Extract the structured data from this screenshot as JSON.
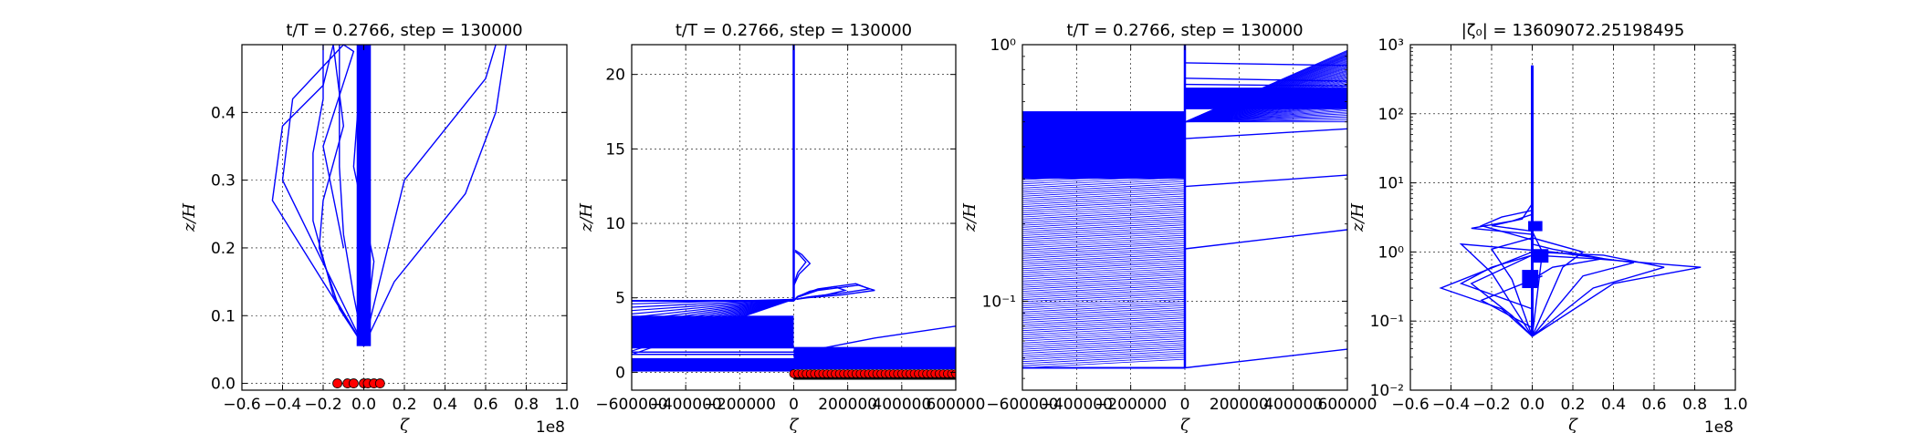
{
  "chart_data": [
    {
      "type": "line",
      "title": "t/T = 0.2766, step = 130000",
      "xlabel": "ζ",
      "ylabel": "z/H",
      "x_offset_label": "1e8",
      "xlim": [
        -0.6,
        1.0
      ],
      "ylim": [
        -0.01,
        0.5
      ],
      "xticks": [
        -0.6,
        -0.4,
        -0.2,
        0.0,
        0.2,
        0.4,
        0.6,
        0.8,
        1.0
      ],
      "xtick_labels": [
        "−0.6",
        "−0.4",
        "−0.2",
        "0.0",
        "0.2",
        "0.4",
        "0.6",
        "0.8",
        "1.0"
      ],
      "yticks": [
        0.0,
        0.1,
        0.2,
        0.3,
        0.4
      ],
      "ytick_labels": [
        "0.0",
        "0.1",
        "0.2",
        "0.3",
        "0.4"
      ],
      "grid": true,
      "series_color": "#0000ff",
      "marker_color": "#ff0000",
      "series": [
        {
          "x": [
            0.0,
            -0.4,
            -0.35,
            -0.1,
            -0.05,
            -0.2,
            -0.1
          ],
          "y": [
            0.055,
            0.3,
            0.42,
            0.5,
            0.49,
            0.35,
            0.2
          ]
        },
        {
          "x": [
            0.0,
            -0.2,
            -0.45,
            -0.4,
            -0.2,
            -0.15
          ],
          "y": [
            0.055,
            0.15,
            0.27,
            0.38,
            0.44,
            0.5
          ]
        },
        {
          "x": [
            0.0,
            -0.15,
            -0.25,
            -0.25,
            -0.2,
            -0.2
          ],
          "y": [
            0.055,
            0.13,
            0.24,
            0.34,
            0.42,
            0.5
          ]
        },
        {
          "x": [
            0.0,
            -0.05,
            -0.1,
            -0.12,
            -0.12
          ],
          "y": [
            0.055,
            0.13,
            0.22,
            0.32,
            0.5
          ]
        },
        {
          "x": [
            0.0,
            0.02,
            0.0,
            0.0,
            0.0,
            0.0
          ],
          "y": [
            0.055,
            0.3,
            0.42,
            0.45,
            0.47,
            0.5
          ]
        },
        {
          "x": [
            0.0,
            0.15,
            0.5,
            0.65,
            0.7
          ],
          "y": [
            0.055,
            0.15,
            0.28,
            0.4,
            0.5
          ]
        },
        {
          "x": [
            0.0,
            0.2,
            0.6,
            0.65
          ],
          "y": [
            0.055,
            0.3,
            0.45,
            0.5
          ]
        },
        {
          "x": [
            0.0,
            -0.12,
            -0.22,
            -0.2,
            -0.1,
            -0.15
          ],
          "y": [
            0.055,
            0.11,
            0.2,
            0.27,
            0.38,
            0.5
          ]
        },
        {
          "x": [
            0.0,
            0.05,
            -0.05,
            -0.02,
            0.03
          ],
          "y": [
            0.055,
            0.18,
            0.32,
            0.44,
            0.5
          ]
        }
      ],
      "band": {
        "x_min": -0.035,
        "x_max": 0.035,
        "y_min": 0.055,
        "y_max": 0.5
      },
      "markers_x": [
        -0.13,
        -0.08,
        -0.05,
        0.0,
        0.02,
        0.05,
        0.08
      ],
      "markers_y": 0.0
    },
    {
      "type": "line",
      "title": "t/T = 0.2766, step = 130000",
      "xlabel": "ζ",
      "ylabel": "z/H",
      "xlim": [
        -600000,
        600000
      ],
      "ylim": [
        -1.2,
        22
      ],
      "xticks": [
        -600000,
        -400000,
        -200000,
        0,
        200000,
        400000,
        600000
      ],
      "xtick_labels": [
        "−600000",
        "−400000",
        "−200000",
        "0",
        "200000",
        "400000",
        "600000"
      ],
      "yticks": [
        0,
        5,
        10,
        15,
        20
      ],
      "ytick_labels": [
        "0",
        "5",
        "10",
        "15",
        "20"
      ],
      "grid": true,
      "series_color": "#0000ff",
      "marker_color": "#ff0000",
      "curve_series": [
        {
          "x": [
            0,
            15000,
            90000,
            240000,
            300000,
            180000,
            50000,
            10000
          ],
          "y": [
            4.8,
            5.05,
            5.5,
            5.85,
            5.5,
            5.2,
            5.0,
            4.9
          ]
        },
        {
          "x": [
            0,
            15000,
            90000,
            230000,
            280000,
            170000,
            50000,
            10000
          ],
          "y": [
            4.8,
            5.1,
            5.6,
            5.95,
            5.6,
            5.3,
            5.05,
            4.9
          ]
        },
        {
          "x": [
            0,
            12000,
            60000,
            150000,
            190000,
            120000,
            40000
          ],
          "y": [
            4.8,
            5.05,
            5.45,
            5.75,
            5.5,
            5.2,
            5.0
          ]
        },
        {
          "x": [
            0,
            20000,
            60000,
            30000,
            5000
          ],
          "y": [
            5.8,
            6.6,
            7.3,
            7.9,
            8.2
          ]
        },
        {
          "x": [
            0,
            15000,
            45000,
            20000,
            5000
          ],
          "y": [
            5.9,
            6.7,
            7.4,
            7.9,
            8.1
          ]
        },
        {
          "x": [
            0,
            100000,
            300000,
            600000
          ],
          "y": [
            1.0,
            1.6,
            2.3,
            3.1
          ]
        }
      ],
      "left_fan": {
        "x_start": -600000,
        "x_end": 0,
        "y_start_min": 1.2,
        "y_start_max": 4.6,
        "y_end": 4.9,
        "count": 16
      },
      "left_fills": [
        {
          "y_min": 1.6,
          "y_max": 3.8,
          "x_min": -600000,
          "x_max": 0
        },
        {
          "y_min": 0.05,
          "y_max": 0.95,
          "x_min": -600000,
          "x_max": 0
        }
      ],
      "left_lines_y": [
        1.2,
        1.35
      ],
      "right_fill": {
        "y_min": 0.2,
        "y_max": 1.7,
        "x_min": 0,
        "x_max": 600000
      },
      "right_fill2": {
        "y_min": -0.5,
        "y_max": -0.2,
        "x_min": 0,
        "x_max": 600000
      },
      "spike": {
        "x": 0,
        "y_min": 4.8,
        "y_max": 22
      },
      "markers_y": -0.1,
      "markers_x_start": 0,
      "markers_x_end": 600000,
      "marker_count": 40
    },
    {
      "type": "line",
      "title": "t/T = 0.2766, step = 130000",
      "xlabel": "ζ",
      "ylabel": "z/H",
      "xlim": [
        -600000,
        600000
      ],
      "ylim": [
        0.045,
        1.0
      ],
      "yscale": "log",
      "xticks": [
        -600000,
        -400000,
        -200000,
        0,
        200000,
        400000,
        600000
      ],
      "xtick_labels": [
        "−600000",
        "−400000",
        "−200000",
        "0",
        "200000",
        "400000",
        "600000"
      ],
      "yticks": [
        0.1,
        1.0
      ],
      "ytick_labels": [
        "10⁻¹",
        "10⁰"
      ],
      "grid": true,
      "series_color": "#0000ff",
      "left_fan": {
        "x_start": -600000,
        "x_end": 0,
        "y_min": 0.055,
        "y_max": 0.5,
        "count": 120
      },
      "right_fan": {
        "x_start": 0,
        "x_end": 600000,
        "y_low_start": 0.5,
        "y_low_end": 0.5,
        "y_high": 0.95,
        "count": 60
      },
      "right_lines": [
        {
          "y0": 0.85,
          "y1": 0.83
        },
        {
          "y0": 0.74,
          "y1": 0.72
        },
        {
          "y0": 0.7,
          "y1": 0.69
        },
        {
          "y0": 0.66,
          "y1": 0.66
        },
        {
          "y0": 0.43,
          "y1": 0.47
        },
        {
          "y0": 0.28,
          "y1": 0.31
        },
        {
          "y0": 0.16,
          "y1": 0.19
        },
        {
          "y0": 0.055,
          "y1": 0.065
        }
      ],
      "left_blocks": [
        {
          "y_min": 0.3,
          "y_max": 0.52
        }
      ]
    },
    {
      "type": "line",
      "title": "|ζ₀| = 13609072.25198495",
      "xlabel": "ζ",
      "ylabel": "z/H",
      "x_offset_label": "1e8",
      "xlim": [
        -0.6,
        1.0
      ],
      "ylim": [
        0.01,
        1000
      ],
      "yscale": "log",
      "xticks": [
        -0.6,
        -0.4,
        -0.2,
        0.0,
        0.2,
        0.4,
        0.6,
        0.8,
        1.0
      ],
      "xtick_labels": [
        "−0.6",
        "−0.4",
        "−0.2",
        "0.0",
        "0.2",
        "0.4",
        "0.6",
        "0.8",
        "1.0"
      ],
      "yticks": [
        0.01,
        0.1,
        1,
        10,
        100,
        1000
      ],
      "ytick_labels": [
        "10⁻²",
        "10⁻¹",
        "10⁰",
        "10¹",
        "10²",
        "10³"
      ],
      "grid": true,
      "series_color": "#0000ff",
      "series": [
        {
          "x": [
            0.0,
            0.05,
            0.0,
            -0.2,
            -0.05,
            0.0,
            0.0,
            0.0
          ],
          "y": [
            0.06,
            1.0,
            2.0,
            2.4,
            3.0,
            5.0,
            50,
            500
          ]
        },
        {
          "x": [
            0.0,
            0.3,
            0.65,
            0.35,
            0.0,
            -0.45,
            -0.15,
            0.0
          ],
          "y": [
            0.06,
            0.3,
            0.6,
            0.9,
            1.0,
            0.3,
            0.15,
            0.06
          ]
        },
        {
          "x": [
            0.0,
            0.4,
            0.83,
            0.3,
            0.0,
            -0.3,
            -0.1,
            0.0
          ],
          "y": [
            0.06,
            0.35,
            0.6,
            0.8,
            0.9,
            0.35,
            0.12,
            0.06
          ]
        },
        {
          "x": [
            0.0,
            0.25,
            0.5,
            0.1,
            -0.35,
            -0.2,
            0.0
          ],
          "y": [
            0.06,
            0.45,
            0.7,
            1.0,
            1.3,
            0.5,
            0.06
          ]
        },
        {
          "x": [
            0.0,
            0.15,
            0.25,
            0.0,
            -0.2,
            -0.1,
            0.0
          ],
          "y": [
            0.06,
            0.6,
            1.0,
            1.6,
            1.1,
            0.4,
            0.06
          ]
        },
        {
          "x": [
            0.0,
            -0.25,
            -0.15,
            0.0
          ],
          "y": [
            1.5,
            2.4,
            3.2,
            4.0
          ]
        },
        {
          "x": [
            0.0,
            -0.3,
            -0.1,
            0.0
          ],
          "y": [
            1.8,
            2.2,
            2.8,
            3.5
          ]
        },
        {
          "x": [
            0.0,
            0.1,
            0.35,
            0.1,
            0.0
          ],
          "y": [
            0.4,
            0.6,
            0.8,
            1.1,
            1.3
          ]
        },
        {
          "x": [
            0.0,
            -0.35,
            -0.2,
            0.0
          ],
          "y": [
            0.15,
            0.35,
            0.6,
            0.9
          ]
        },
        {
          "x": [
            0.0,
            -0.25,
            0.05
          ],
          "y": [
            0.08,
            0.2,
            0.45
          ]
        }
      ],
      "blobs": [
        {
          "y_min": 0.3,
          "y_max": 0.55,
          "x_min": -0.05,
          "x_max": 0.03
        },
        {
          "y_min": 0.7,
          "y_max": 1.1,
          "x_min": 0.0,
          "x_max": 0.08
        },
        {
          "y_min": 2.0,
          "y_max": 2.8,
          "x_min": -0.02,
          "x_max": 0.05
        }
      ]
    }
  ]
}
